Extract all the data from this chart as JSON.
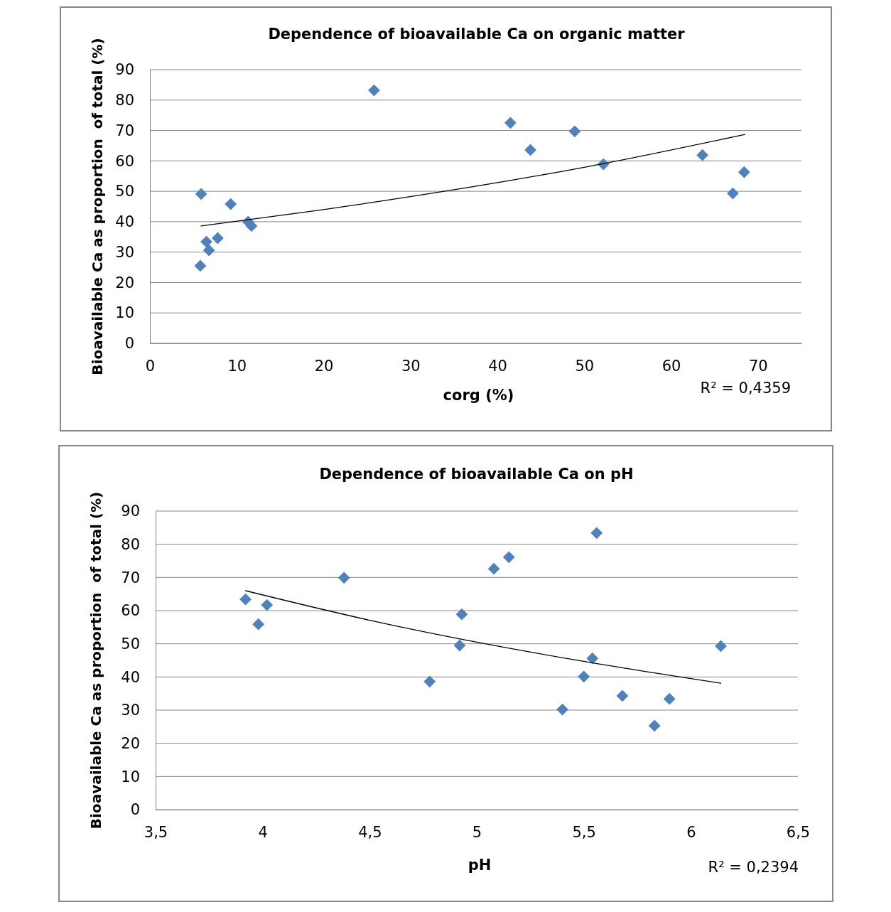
{
  "chart_data": [
    {
      "type": "scatter",
      "title": "Dependence of bioavailable Ca on organic matter",
      "xlabel": "corg (%)",
      "ylabel": "Bioavailable Ca as proportion  of total (%)",
      "annotations": [
        "R² = 0,4359"
      ],
      "xlim": [
        0,
        75
      ],
      "xticks": [
        0,
        10,
        20,
        30,
        40,
        50,
        60,
        70
      ],
      "ylim": [
        0,
        90
      ],
      "yticks": [
        0,
        10,
        20,
        30,
        40,
        50,
        60,
        70,
        80,
        90
      ],
      "grid": "y",
      "marker": "diamond",
      "series": [
        {
          "type": "scatter",
          "color": "#4f81bd",
          "x": [
            5.9,
            6.5,
            5.8,
            6.8,
            7.8,
            9.3,
            11.3,
            11.7,
            25.8,
            41.5,
            43.8,
            48.9,
            52.2,
            63.6,
            67.1,
            68.4
          ],
          "values": [
            49.1,
            33.4,
            25.5,
            30.6,
            34.6,
            45.8,
            40.0,
            38.6,
            83.2,
            72.5,
            63.6,
            69.7,
            58.9,
            61.9,
            49.3,
            56.3
          ]
        },
        {
          "type": "line",
          "color": "#000000",
          "marker": "none",
          "x": [
            5.9,
            20,
            35,
            50,
            68.5
          ],
          "values": [
            38.6,
            44.0,
            50.5,
            57.9,
            68.7
          ]
        }
      ]
    },
    {
      "type": "scatter",
      "title": "Dependence of bioavailable Ca on pH",
      "xlabel": "pH",
      "ylabel": "Bioavailable Ca as proportion  of total (%)",
      "annotations": [
        "R² = 0,2394"
      ],
      "xlim": [
        3.5,
        6.5
      ],
      "xticks": [
        {
          "value": 3.5,
          "label": "3,5"
        },
        4,
        {
          "value": 4.5,
          "label": "4,5"
        },
        5,
        {
          "value": 5.5,
          "label": "5,5"
        },
        6,
        {
          "value": 6.5,
          "label": "6,5"
        }
      ],
      "ylim": [
        0,
        90
      ],
      "yticks": [
        0,
        10,
        20,
        30,
        40,
        50,
        60,
        70,
        80,
        90
      ],
      "grid": "y",
      "marker": "diamond",
      "series": [
        {
          "type": "scatter",
          "color": "#4f81bd",
          "x": [
            3.92,
            3.98,
            4.02,
            4.38,
            4.78,
            4.92,
            4.93,
            5.08,
            5.15,
            5.4,
            5.5,
            5.54,
            5.56,
            5.68,
            5.83,
            5.9,
            6.14
          ],
          "values": [
            63.4,
            55.9,
            61.7,
            69.9,
            38.6,
            49.5,
            58.9,
            72.6,
            76.1,
            30.2,
            40.1,
            45.6,
            83.4,
            34.3,
            25.3,
            33.4,
            49.3
          ]
        },
        {
          "type": "line",
          "color": "#000000",
          "marker": "none",
          "x": [
            3.92,
            4.5,
            5,
            5.5,
            6.14
          ],
          "values": [
            66.0,
            57.1,
            50.5,
            44.7,
            38.1
          ]
        }
      ]
    }
  ]
}
